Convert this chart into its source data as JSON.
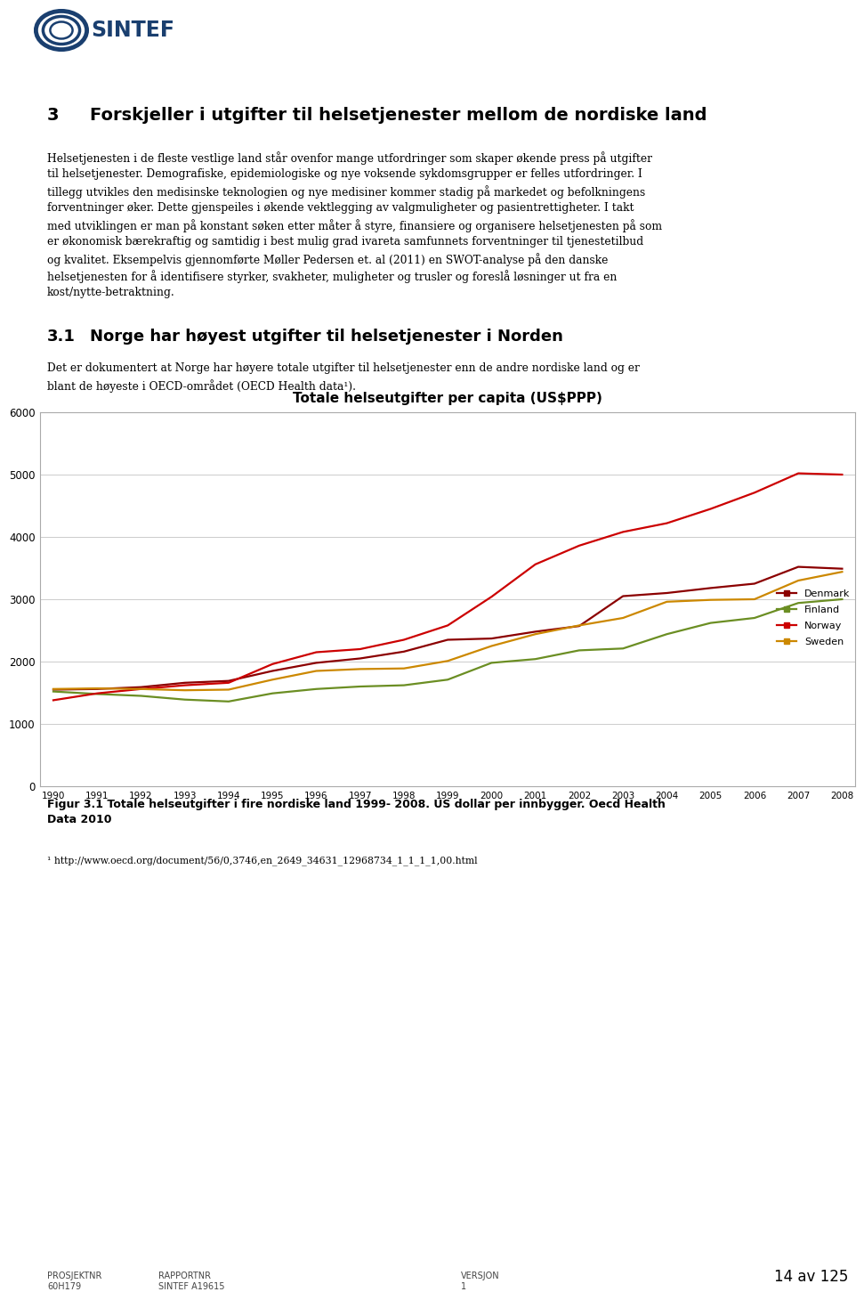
{
  "title": "Totale helseutgifter per capita (US$PPP)",
  "years": [
    1990,
    1991,
    1992,
    1993,
    1994,
    1995,
    1996,
    1997,
    1998,
    1999,
    2000,
    2001,
    2002,
    2003,
    2004,
    2005,
    2006,
    2007,
    2008
  ],
  "denmark": [
    1550,
    1560,
    1590,
    1660,
    1690,
    1850,
    1980,
    2050,
    2160,
    2350,
    2370,
    2480,
    2570,
    3050,
    3100,
    3180,
    3250,
    3520,
    3490
  ],
  "finland": [
    1520,
    1480,
    1450,
    1390,
    1360,
    1490,
    1560,
    1600,
    1620,
    1710,
    1980,
    2040,
    2180,
    2210,
    2440,
    2620,
    2700,
    2940,
    3000
  ],
  "norway": [
    1380,
    1490,
    1560,
    1620,
    1660,
    1960,
    2150,
    2200,
    2350,
    2580,
    3040,
    3560,
    3860,
    4080,
    4220,
    4450,
    4710,
    5020,
    5000
  ],
  "sweden": [
    1560,
    1570,
    1560,
    1540,
    1550,
    1710,
    1850,
    1880,
    1890,
    2010,
    2250,
    2440,
    2580,
    2700,
    2960,
    2990,
    3000,
    3300,
    3440
  ],
  "colors": {
    "denmark": "#8B0000",
    "finland": "#6B8E23",
    "norway": "#CC0000",
    "sweden": "#CC8800"
  },
  "ylim": [
    0,
    6000
  ],
  "yticks": [
    0,
    1000,
    2000,
    3000,
    4000,
    5000,
    6000
  ],
  "grid_color": "#cccccc",
  "sintef_color": "#1a3f6f",
  "footer_left1": "PROSJEKTNR",
  "footer_left2": "60H179",
  "footer_mid1": "RAPPORTNR",
  "footer_mid2": "SINTEF A19615",
  "footer_versjon1": "VERSJON",
  "footer_versjon2": "1",
  "footer_page": "14 av 125",
  "fig_caption_bold": "Figur 3.1 Totale helseutgifter i fire nordiske land 1999- 2008. US dollar per innbygger. Oecd Health Data 2010",
  "footnote_line": "¹ http://www.oecd.org/document/56/0,3746,en_2649_34631_12968734_1_1_1_1,00.html"
}
